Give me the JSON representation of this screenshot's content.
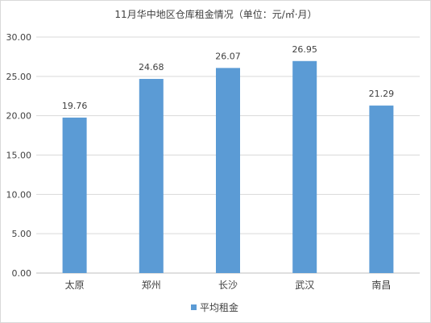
{
  "chart_data": {
    "type": "bar",
    "title": "11月华中地区仓库租金情况（单位：元/㎡·月）",
    "categories": [
      "太原",
      "郑州",
      "长沙",
      "武汉",
      "南昌"
    ],
    "series": [
      {
        "name": "平均租金",
        "values": [
          19.76,
          24.68,
          26.07,
          26.95,
          21.29
        ]
      }
    ],
    "data_labels": [
      "19.76",
      "24.68",
      "26.07",
      "26.95",
      "21.29"
    ],
    "y_ticks": [
      "0.00",
      "5.00",
      "10.00",
      "15.00",
      "20.00",
      "25.00",
      "30.00"
    ],
    "ylim": [
      0,
      30
    ],
    "grid": true,
    "legend_position": "bottom",
    "bar_color": "#5b9bd5"
  }
}
